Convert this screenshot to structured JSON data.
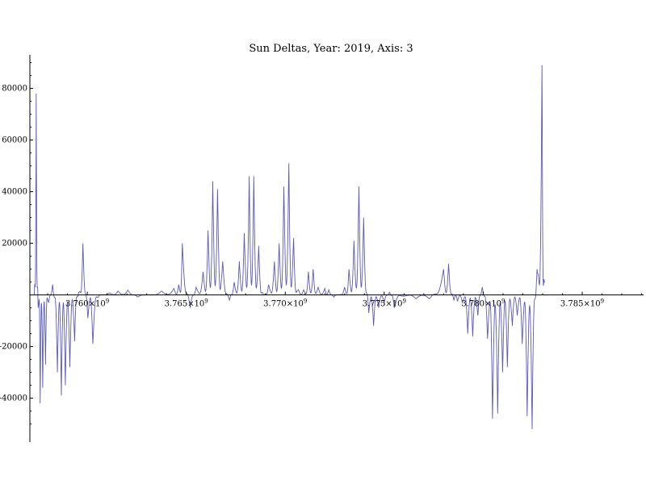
{
  "chart_data": {
    "type": "line",
    "title": "Sun Deltas, Year: 2019, Axis: 3",
    "xlabel": "",
    "ylabel": "",
    "xlim": [
      3757100000.0,
      3788100000.0
    ],
    "ylim": [
      -57000,
      93000
    ],
    "grid": false,
    "colors": {
      "series": "#5a5ab4",
      "axis": "#000000"
    },
    "x_ticks": [
      {
        "value": 3760000000.0,
        "label": "3.760×10",
        "exp": "9"
      },
      {
        "value": 3765000000.0,
        "label": "3.765×10",
        "exp": "9"
      },
      {
        "value": 3770000000.0,
        "label": "3.770×10",
        "exp": "9"
      },
      {
        "value": 3775000000.0,
        "label": "3.775×10",
        "exp": "9"
      },
      {
        "value": 3780000000.0,
        "label": "3.780×10",
        "exp": "9"
      },
      {
        "value": 3785000000.0,
        "label": "3.785×10",
        "exp": "9"
      }
    ],
    "y_ticks": [
      {
        "value": 80000,
        "label": "80000"
      },
      {
        "value": 60000,
        "label": "60000"
      },
      {
        "value": 40000,
        "label": "40000"
      },
      {
        "value": 20000,
        "label": "20000"
      },
      {
        "value": -20000,
        "label": "-20000"
      },
      {
        "value": -40000,
        "label": "-40000"
      }
    ],
    "series": [
      {
        "envelope": [
          [
            3757320000.0,
            0
          ],
          [
            3757420000.0,
            78000
          ],
          [
            3757520000.0,
            -5000
          ],
          [
            3757620000.0,
            -42000
          ],
          [
            3757750000.0,
            -36000
          ],
          [
            3757890000.0,
            -27000
          ],
          [
            3758050000.0,
            -3000
          ],
          [
            3758250000.0,
            4000
          ],
          [
            3758490000.0,
            -30000
          ],
          [
            3758690000.0,
            -39000
          ],
          [
            3758890000.0,
            -35000
          ],
          [
            3759120000.0,
            -28000
          ],
          [
            3759360000.0,
            -18000
          ],
          [
            3759570000.0,
            1000
          ],
          [
            3759780000.0,
            20000
          ],
          [
            3760030000.0,
            -9000
          ],
          [
            3760280000.0,
            -19000
          ],
          [
            3760630000.0,
            0
          ],
          [
            3761130000.0,
            800
          ],
          [
            3761550000.0,
            1500
          ],
          [
            3762050000.0,
            1800
          ],
          [
            3762550000.0,
            -800
          ],
          [
            3763050000.0,
            0
          ],
          [
            3763750000.0,
            1500
          ],
          [
            3764380000.0,
            2500
          ],
          [
            3764620000.0,
            4000
          ],
          [
            3764800000.0,
            20000
          ],
          [
            3765200000.0,
            -5000
          ],
          [
            3765500000.0,
            3000
          ],
          [
            3765850000.0,
            9000
          ],
          [
            3766100000.0,
            25000
          ],
          [
            3766340000.0,
            44000
          ],
          [
            3766580000.0,
            41000
          ],
          [
            3766840000.0,
            13000
          ],
          [
            3767180000.0,
            -2000
          ],
          [
            3767420000.0,
            5000
          ],
          [
            3767680000.0,
            13000
          ],
          [
            3767930000.0,
            24000
          ],
          [
            3768180000.0,
            46000
          ],
          [
            3768410000.0,
            46000
          ],
          [
            3768660000.0,
            19000
          ],
          [
            3768910000.0,
            0
          ],
          [
            3769160000.0,
            4000
          ],
          [
            3769450000.0,
            13000
          ],
          [
            3769690000.0,
            20000
          ],
          [
            3769930000.0,
            42000
          ],
          [
            3770180000.0,
            51000
          ],
          [
            3770420000.0,
            22000
          ],
          [
            3770670000.0,
            2000
          ],
          [
            3770930000.0,
            2000
          ],
          [
            3771170000.0,
            9000
          ],
          [
            3771410000.0,
            10000
          ],
          [
            3771660000.0,
            3000
          ],
          [
            3772000000.0,
            2500
          ],
          [
            3772200000.0,
            2000
          ],
          [
            3772450000.0,
            -800
          ],
          [
            3772700000.0,
            0
          ],
          [
            3773000000.0,
            3000
          ],
          [
            3773220000.0,
            10000
          ],
          [
            3773470000.0,
            21000
          ],
          [
            3773720000.0,
            42000
          ],
          [
            3773960000.0,
            30000
          ],
          [
            3774220000.0,
            -7000
          ],
          [
            3774460000.0,
            -12000
          ],
          [
            3774720000.0,
            -5000
          ],
          [
            3775000000.0,
            -3000
          ],
          [
            3775260000.0,
            1000
          ],
          [
            3775510000.0,
            -5000
          ],
          [
            3776000000.0,
            -500
          ],
          [
            3776600000.0,
            -1500
          ],
          [
            3777280000.0,
            -1500
          ],
          [
            3778000000.0,
            10000
          ],
          [
            3778250000.0,
            12000
          ],
          [
            3778520000.0,
            -2000
          ],
          [
            3778700000.0,
            -2500
          ],
          [
            3778950000.0,
            -3000
          ],
          [
            3779220000.0,
            -15000
          ],
          [
            3779470000.0,
            -16000
          ],
          [
            3779730000.0,
            -8000
          ],
          [
            3779950000.0,
            3000
          ],
          [
            3780220000.0,
            -17000
          ],
          [
            3780470000.0,
            -48000
          ],
          [
            3780730000.0,
            -46000
          ],
          [
            3780980000.0,
            -30000
          ],
          [
            3781220000.0,
            -28000
          ],
          [
            3781470000.0,
            -12000
          ],
          [
            3781720000.0,
            -8000
          ],
          [
            3781970000.0,
            -19000
          ],
          [
            3782220000.0,
            -47000
          ],
          [
            3782470000.0,
            -52000
          ],
          [
            3782720000.0,
            10000
          ],
          [
            3782970000.0,
            89000
          ],
          [
            3783100000.0,
            5000
          ]
        ]
      }
    ]
  }
}
